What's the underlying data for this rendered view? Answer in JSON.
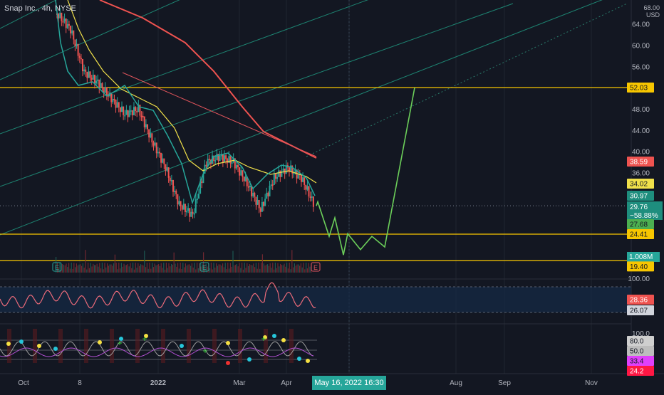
{
  "header": {
    "title": "Snap Inc., 4h, NYSE",
    "currency_top": "68.00",
    "currency": "USD"
  },
  "chart_data": {
    "type": "line",
    "title": "Snap Inc., 4h, NYSE",
    "y_axis": {
      "ticks": [
        64.0,
        60.0,
        56.0,
        52.0,
        48.0,
        44.0,
        40.0,
        36.0
      ],
      "unit": "USD"
    },
    "x_axis": {
      "ticks": [
        "Oct",
        "8",
        "2022",
        "Mar",
        "Apr",
        "May 16, 2022 16:30",
        "Aug",
        "Sep",
        "Nov"
      ]
    },
    "horizontal_levels": [
      52.03,
      24.41,
      19.4
    ],
    "price_labels": [
      {
        "value": "52.03",
        "kind": "level"
      },
      {
        "value": "38.59",
        "kind": "red-ma"
      },
      {
        "value": "34.02",
        "kind": "yellow-ma"
      },
      {
        "value": "30.97",
        "kind": "teal-ma"
      },
      {
        "value": "29.76",
        "kind": "last-price"
      },
      {
        "value": "−58.88%",
        "kind": "change"
      },
      {
        "value": "27.68",
        "kind": "green"
      },
      {
        "value": "24.41",
        "kind": "level"
      },
      {
        "value": "1.008M",
        "kind": "volume"
      },
      {
        "value": "19.40",
        "kind": "level"
      }
    ],
    "price_series": [
      {
        "date": "late Sep",
        "close": 66.0
      },
      {
        "date": "Oct",
        "close": 63.0
      },
      {
        "date": "late Oct",
        "close": 55.0
      },
      {
        "date": "Nov",
        "close": 53.0
      },
      {
        "date": "mid Nov",
        "close": 50.0
      },
      {
        "date": "Dec",
        "close": 47.0
      },
      {
        "date": "mid Dec",
        "close": 48.0
      },
      {
        "date": "late Dec",
        "close": 42.0
      },
      {
        "date": "Jan 2022",
        "close": 37.0
      },
      {
        "date": "mid Jan",
        "close": 30.0
      },
      {
        "date": "late Jan",
        "close": 28.0
      },
      {
        "date": "Feb",
        "close": 38.0
      },
      {
        "date": "mid Feb",
        "close": 39.0
      },
      {
        "date": "late Feb",
        "close": 38.0
      },
      {
        "date": "Mar",
        "close": 34.0
      },
      {
        "date": "mid Mar",
        "close": 29.0
      },
      {
        "date": "late Mar",
        "close": 35.0
      },
      {
        "date": "Apr",
        "close": 37.0
      },
      {
        "date": "mid Apr",
        "close": 35.0
      },
      {
        "date": "late Apr",
        "close": 29.76
      }
    ],
    "projection_path": [
      {
        "date": "May",
        "close": 28.0
      },
      {
        "date": "May",
        "close": 30.5
      },
      {
        "date": "May",
        "close": 24.0
      },
      {
        "date": "May",
        "close": 27.5
      },
      {
        "date": "Jun",
        "close": 20.5
      },
      {
        "date": "Jun",
        "close": 24.5
      },
      {
        "date": "Jun",
        "close": 21.5
      },
      {
        "date": "Jun",
        "close": 24.0
      },
      {
        "date": "Jul",
        "close": 22.0
      },
      {
        "date": "Jul",
        "close": 52.0
      }
    ],
    "rsi": {
      "upper": "100.00",
      "value_red": "28.36",
      "value_gray": "26.07"
    },
    "oscillator": {
      "top": "100.0",
      "v1": "80.0",
      "v2": "50.0",
      "v3": "33.4",
      "v4": "24.2"
    }
  },
  "earnings_markers": [
    {
      "label": "E"
    },
    {
      "label": "E"
    },
    {
      "label": "E"
    }
  ],
  "colors": {
    "background": "#131722",
    "teal": "#26a69a",
    "red": "#ef5350",
    "yellow": "#f0e04a",
    "level": "#f7c600",
    "green": "#4caf50",
    "pink_rsi": "#ec6b7a"
  }
}
